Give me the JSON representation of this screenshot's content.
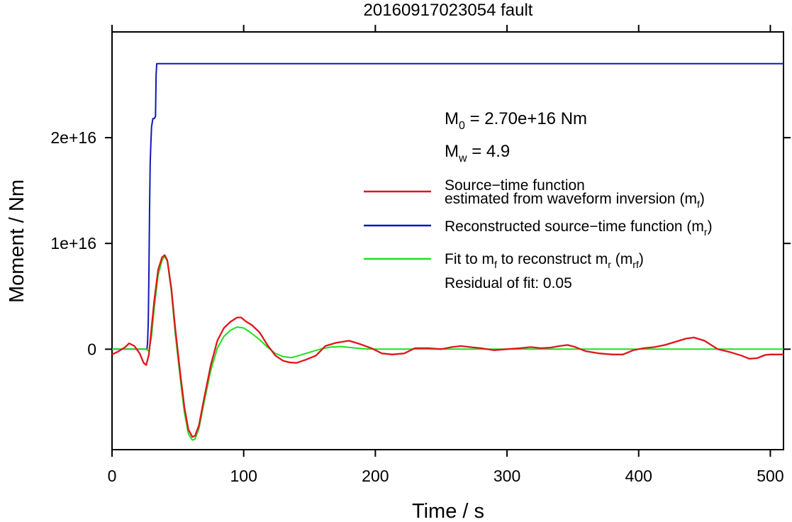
{
  "title": "20160917023054 fault",
  "chart_data": {
    "type": "line",
    "title": "20160917023054 fault",
    "xlabel": "Time / s",
    "ylabel": "Moment / Nm",
    "xlim": [
      0,
      510
    ],
    "ylim": [
      -9500000000000000.0,
      3e+16
    ],
    "xticks": [
      0,
      100,
      200,
      300,
      400,
      500
    ],
    "xtick_labels": [
      "0",
      "100",
      "200",
      "300",
      "400",
      "500"
    ],
    "yticks": [
      0,
      1e+16,
      2e+16
    ],
    "ytick_labels": [
      "0",
      "1e+16",
      "2e+16"
    ],
    "grid": false,
    "legend_position": "right",
    "annotations": {
      "m0": {
        "symbol": "M",
        "sub": "0",
        "text": " = 2.70e+16 Nm"
      },
      "mw": {
        "symbol": "M",
        "sub": "w",
        "text": " = 4.9"
      },
      "residual": "Residual of fit: 0.05"
    },
    "legend": [
      {
        "lines": [
          "Source−time function",
          "estimated from waveform inversion (m",
          "f",
          ")"
        ],
        "color": "#e0161b"
      },
      {
        "lines": [
          "Reconstructed source−time function (m",
          "r",
          ")"
        ],
        "color": "#1118b8"
      },
      {
        "lines": [
          "Fit to m",
          "f",
          " to reconstruct m",
          "r",
          " (m",
          "rf",
          ")"
        ],
        "color": "#1ee01e"
      }
    ],
    "series": [
      {
        "key": "mr",
        "color": "#1118b8",
        "x": [
          0,
          26,
          26.5,
          27,
          27.5,
          28,
          28.5,
          29,
          29.5,
          30,
          31,
          32,
          33,
          33.5,
          34,
          35,
          510
        ],
        "y": [
          0,
          0,
          0,
          600000000000000.0,
          2500000000000000.0,
          7000000000000000.0,
          1.3e+16,
          1.75e+16,
          1.95e+16,
          2.1e+16,
          2.18e+16,
          2.18e+16,
          2.2e+16,
          2.6e+16,
          2.7e+16,
          2.7e+16,
          2.7e+16
        ]
      },
      {
        "key": "mf",
        "color": "#e0161b",
        "x": [
          0,
          5,
          10,
          13,
          17,
          21,
          24,
          26,
          28,
          30,
          32,
          35,
          38,
          40,
          42,
          45,
          48,
          52,
          55,
          58,
          61,
          63,
          66,
          70,
          75,
          80,
          85,
          90,
          95,
          98,
          102,
          106,
          112,
          118,
          124,
          130,
          135,
          140,
          147,
          155,
          162,
          170,
          180,
          188,
          197,
          205,
          213,
          222,
          230,
          240,
          250,
          258,
          265,
          272,
          280,
          290,
          300,
          310,
          318,
          326,
          333,
          340,
          346,
          352,
          360,
          370,
          380,
          388,
          396,
          404,
          412,
          420,
          428,
          436,
          442,
          450,
          460,
          470,
          478,
          484,
          490,
          496,
          500,
          510
        ],
        "y": [
          -500000000000000.0,
          -200000000000000.0,
          200000000000000.0,
          550000000000000.0,
          300000000000000.0,
          -400000000000000.0,
          -1300000000000000.0,
          -1500000000000000.0,
          -500000000000000.0,
          2000000000000000.0,
          4500000000000000.0,
          7500000000000000.0,
          8700000000000000.0,
          8900000000000000.0,
          8400000000000000.0,
          5800000000000000.0,
          2000000000000000.0,
          -2500000000000000.0,
          -5500000000000000.0,
          -7600000000000000.0,
          -8300000000000000.0,
          -8200000000000000.0,
          -7200000000000000.0,
          -4600000000000000.0,
          -1500000000000000.0,
          800000000000000.0,
          2000000000000000.0,
          2600000000000000.0,
          3000000000000000.0,
          3000000000000000.0,
          2600000000000000.0,
          2300000000000000.0,
          1600000000000000.0,
          400000000000000.0,
          -600000000000000.0,
          -1100000000000000.0,
          -1250000000000000.0,
          -1300000000000000.0,
          -1000000000000000.0,
          -600000000000000.0,
          300000000000000.0,
          600000000000000.0,
          800000000000000.0,
          500000000000000.0,
          100000000000000.0,
          -400000000000000.0,
          -500000000000000.0,
          -400000000000000.0,
          100000000000000.0,
          100000000000000.0,
          0.0,
          200000000000000.0,
          300000000000000.0,
          200000000000000.0,
          100000000000000.0,
          -100000000000000.0,
          0.0,
          100000000000000.0,
          200000000000000.0,
          100000000000000.0,
          150000000000000.0,
          300000000000000.0,
          400000000000000.0,
          200000000000000.0,
          -200000000000000.0,
          -400000000000000.0,
          -500000000000000.0,
          -500000000000000.0,
          -100000000000000.0,
          100000000000000.0,
          200000000000000.0,
          400000000000000.0,
          700000000000000.0,
          1000000000000000.0,
          1100000000000000.0,
          800000000000000.0,
          0.0,
          -300000000000000.0,
          -600000000000000.0,
          -900000000000000.0,
          -850000000000000.0,
          -550000000000000.0,
          -500000000000000.0,
          -500000000000000.0
        ]
      },
      {
        "key": "mrf",
        "color": "#1ee01e",
        "x": [
          0,
          22,
          26,
          28,
          30,
          32,
          35,
          38,
          40,
          42,
          45,
          48,
          52,
          55,
          58,
          61,
          63,
          66,
          70,
          75,
          80,
          85,
          90,
          95,
          100,
          105,
          112,
          118,
          124,
          130,
          136,
          142,
          150,
          158,
          166,
          174,
          182,
          190,
          198,
          210,
          230,
          510
        ],
        "y": [
          0,
          0,
          0,
          -200000000000000.0,
          1200000000000000.0,
          3800000000000000.0,
          7000000000000000.0,
          8400000000000000.0,
          8800000000000000.0,
          8300000000000000.0,
          5500000000000000.0,
          1500000000000000.0,
          -3000000000000000.0,
          -6000000000000000.0,
          -8000000000000000.0,
          -8600000000000000.0,
          -8500000000000000.0,
          -7500000000000000.0,
          -5000000000000000.0,
          -2000000000000000.0,
          100000000000000.0,
          1200000000000000.0,
          1800000000000000.0,
          2100000000000000.0,
          2000000000000000.0,
          1600000000000000.0,
          900000000000000.0,
          200000000000000.0,
          -400000000000000.0,
          -700000000000000.0,
          -800000000000000.0,
          -600000000000000.0,
          -300000000000000.0,
          0.0,
          200000000000000.0,
          250000000000000.0,
          150000000000000.0,
          50000000000000.0,
          0.0,
          0.0,
          0.0,
          0.0
        ]
      }
    ]
  }
}
